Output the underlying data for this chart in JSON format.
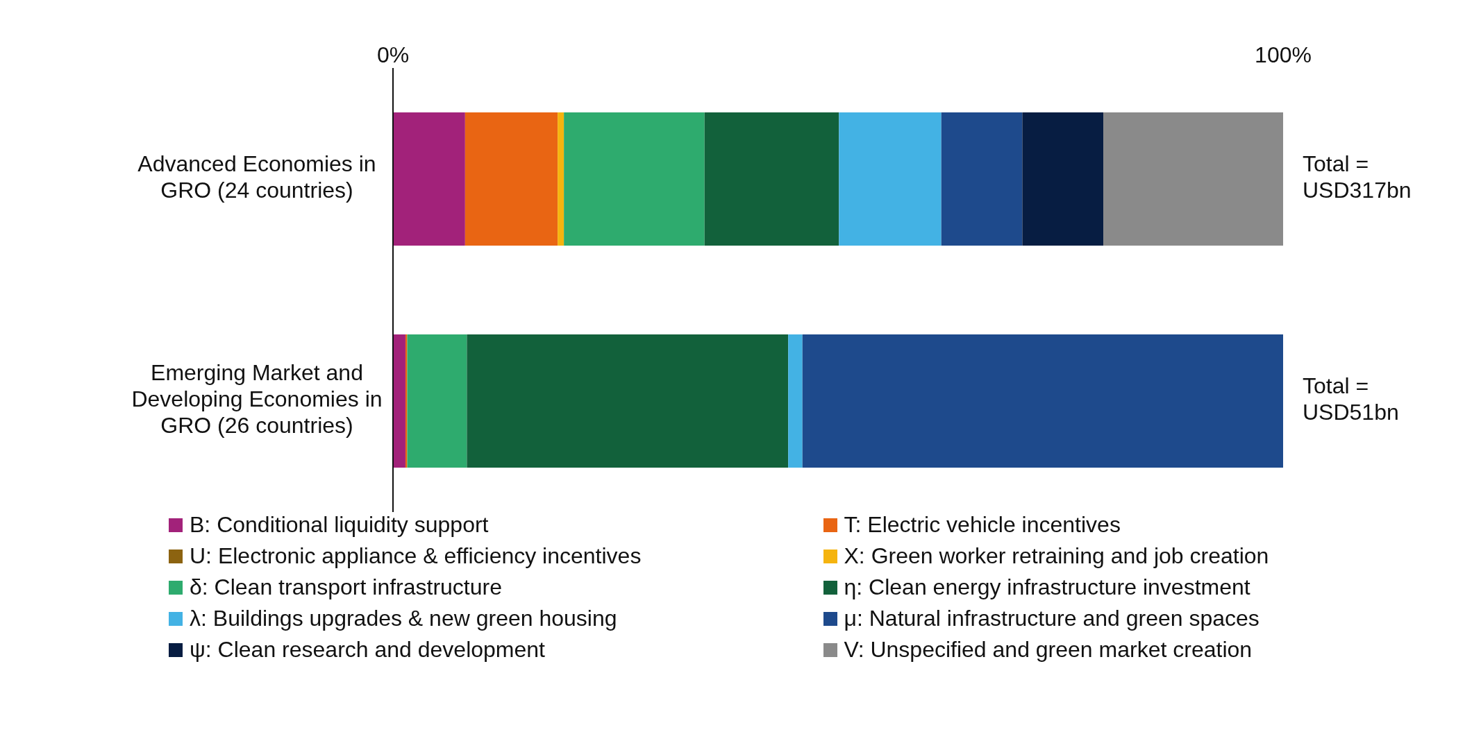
{
  "chart_data": {
    "type": "bar",
    "orientation": "horizontal",
    "stacked": true,
    "legend": "bottom",
    "categories": [
      "Advanced Economies in GRO (24 countries)",
      "Emerging Market and Developing Economies in GRO (26 countries)"
    ],
    "xlim": [
      0,
      100
    ],
    "xticks": [
      {
        "value": 0,
        "label": "0%"
      },
      {
        "value": 100,
        "label": "100%"
      }
    ],
    "totals": [
      "Total = USD317bn",
      "Total = USD51bn"
    ],
    "series": [
      {
        "name": "B: Conditional liquidity support",
        "color": "#a2227a",
        "values": [
          8.1,
          1.4
        ]
      },
      {
        "name": "T: Electric vehicle incentives",
        "color": "#e96513",
        "values": [
          10.4,
          0.2
        ]
      },
      {
        "name": "U: Electronic appliance & efficiency incentives",
        "color": "#8c6310",
        "values": [
          0,
          0
        ]
      },
      {
        "name": "X: Green worker retraining and job creation",
        "color": "#f5b40f",
        "values": [
          0.7,
          0
        ]
      },
      {
        "name": "δ: Clean transport infrastructure",
        "color": "#2eab6e",
        "values": [
          15.8,
          6.7
        ]
      },
      {
        "name": "η: Clean energy infrastructure investment",
        "color": "#12613b",
        "values": [
          15.1,
          36.1
        ]
      },
      {
        "name": "λ: Buildings upgrades & new green housing",
        "color": "#43b2e4",
        "values": [
          11.5,
          1.6
        ]
      },
      {
        "name": "μ: Natural infrastructure and green spaces",
        "color": "#1e4a8c",
        "values": [
          9.1,
          54.0
        ]
      },
      {
        "name": "ψ: Clean research and development",
        "color": "#071d42",
        "values": [
          9.1,
          0
        ]
      },
      {
        "name": "V: Unspecified and green market creation",
        "color": "#8a8a8a",
        "values": [
          20.2,
          0
        ]
      }
    ]
  }
}
